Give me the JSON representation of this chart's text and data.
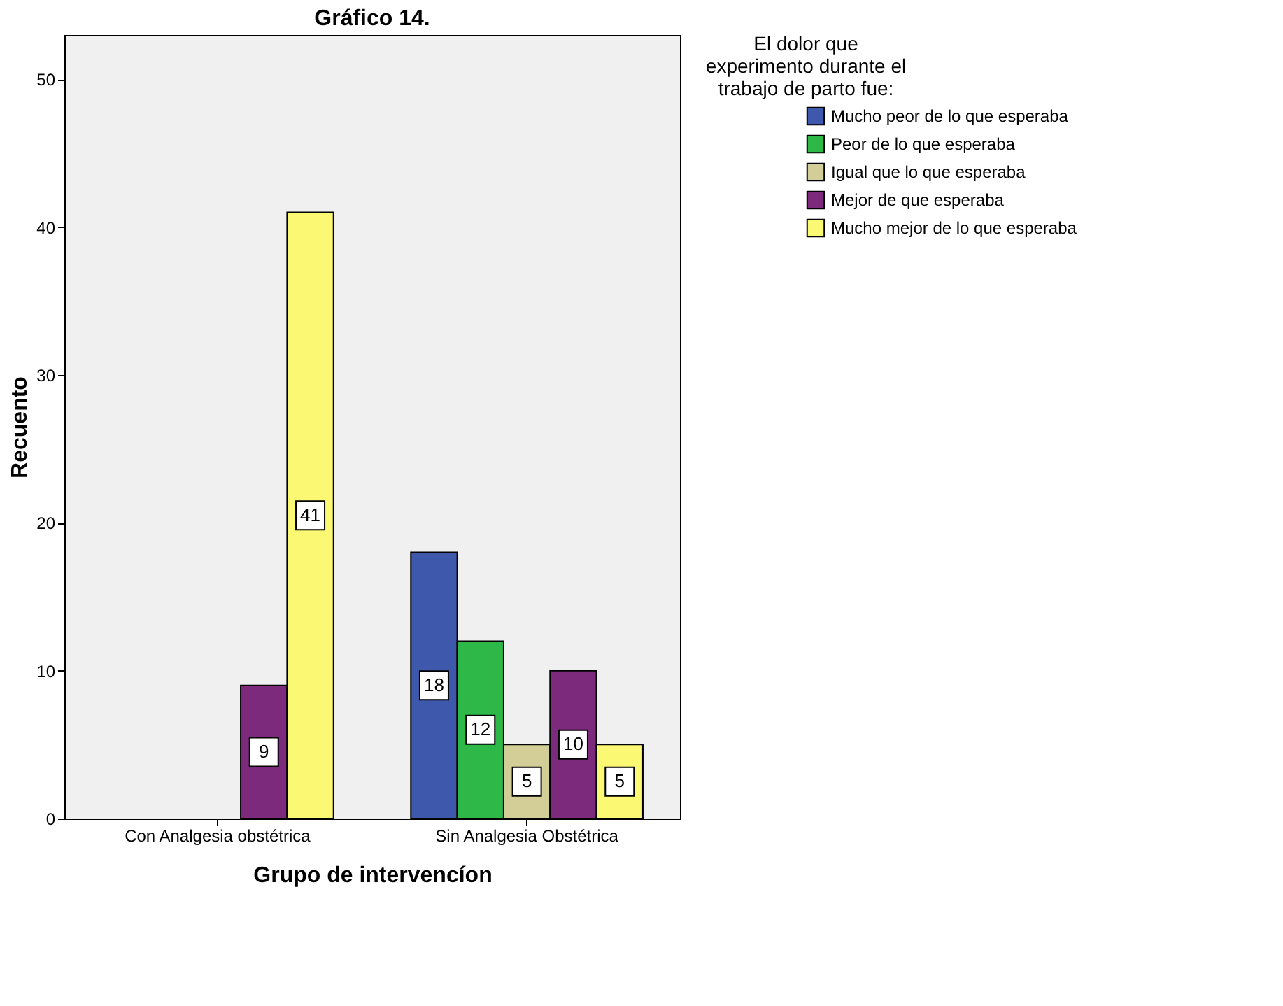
{
  "chart_data": {
    "type": "bar",
    "title": "Gráfico 14.",
    "xlabel": "Grupo de intervencíon",
    "ylabel": "Recuento",
    "legend_title": "El dolor que experimento durante el trabajo de parto fue:",
    "categories": [
      "Con Analgesia obstétrica",
      "Sin Analgesia Obstétrica"
    ],
    "series": [
      {
        "name": "Mucho peor de lo que esperaba",
        "color": "#3e58ac",
        "values": [
          null,
          18
        ]
      },
      {
        "name": "Peor de lo que esperaba",
        "color": "#2eb848",
        "values": [
          null,
          12
        ]
      },
      {
        "name": "Igual que lo que esperaba",
        "color": "#d3ce97",
        "values": [
          null,
          5
        ]
      },
      {
        "name": "Mejor de que esperaba",
        "color": "#7c2a7c",
        "values": [
          9,
          10
        ]
      },
      {
        "name": "Mucho mejor de lo que esperaba",
        "color": "#fbf873",
        "values": [
          41,
          5
        ]
      }
    ],
    "ylim": [
      0,
      53
    ],
    "yticks": [
      0,
      10,
      20,
      30,
      40,
      50
    ],
    "grid": false,
    "legend": "right",
    "data_labels": true
  }
}
